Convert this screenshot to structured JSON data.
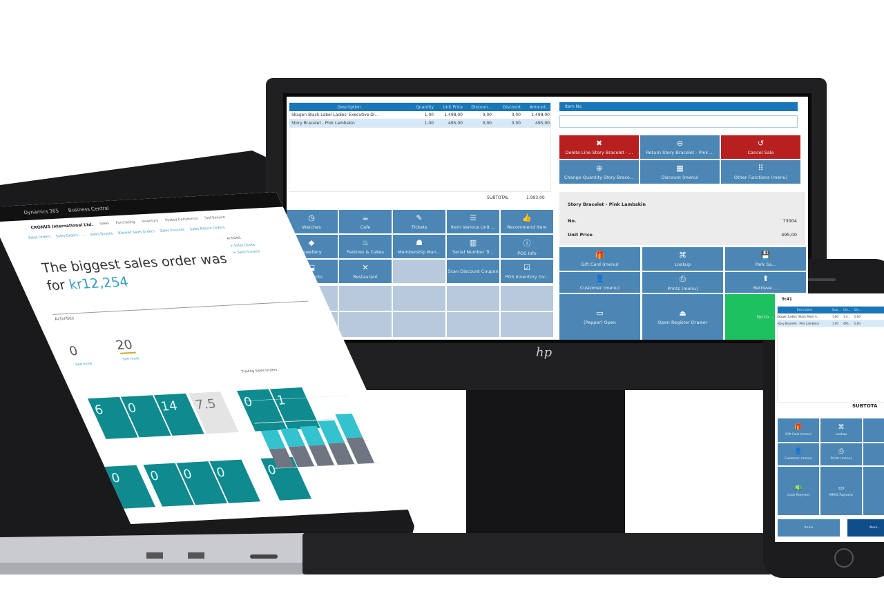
{
  "colors": {
    "accent": "#1976b8",
    "tile": "#4b86b4",
    "danger": "#b8201f",
    "success": "#1ec160",
    "dashboard_tile": "#0f8a8f"
  },
  "monitor": {
    "brand": "hp",
    "table": {
      "headers": [
        "Description",
        "Quantity",
        "Unit Price",
        "Discoun...",
        "Discount",
        "Amount..."
      ],
      "rows": [
        [
          "Skagen Black Label Ladies' Executive Di...",
          "1,00",
          "1.498,00",
          "0,00",
          "0,00",
          "1.498,00"
        ],
        [
          "Story Bracelet - Pink Lambskin",
          "1,00",
          "495,00",
          "0,00",
          "0,00",
          "495,00"
        ]
      ]
    },
    "subtotal_label": "SUBTOTAL",
    "subtotal_value": "1.993,00",
    "item_no_label": "Item No.",
    "item_no_value": "",
    "tiles": [
      {
        "label": "Watches",
        "icon": "watch-icon",
        "glyph": "◷"
      },
      {
        "label": "Cafe",
        "icon": "coffee-icon",
        "glyph": "☕"
      },
      {
        "label": "Tickets",
        "icon": "ticket-icon",
        "glyph": "✎"
      },
      {
        "label": "Item Various Unit ...",
        "icon": "stack-icon",
        "glyph": "☰"
      },
      {
        "label": "Recommend Item",
        "icon": "thumbs-up-icon",
        "glyph": "👍"
      },
      {
        "label": "Jewellery",
        "icon": "diamond-icon",
        "glyph": "◆"
      },
      {
        "label": "Pastries & Cakes",
        "icon": "cake-icon",
        "glyph": "♨"
      },
      {
        "label": "Membership Man...",
        "icon": "member-icon",
        "glyph": "☗"
      },
      {
        "label": "Serial Number Tr...",
        "icon": "barcode-icon",
        "glyph": "▥"
      },
      {
        "label": "POS Info",
        "icon": "info-icon",
        "glyph": "ⓘ"
      },
      {
        "label": "Garments",
        "icon": "garment-icon",
        "glyph": "⬓"
      },
      {
        "label": "Restaurant",
        "icon": "cutlery-icon",
        "glyph": "✕"
      },
      {
        "label": "",
        "icon": "",
        "glyph": ""
      },
      {
        "label": "Scan Discount Coupon",
        "icon": "",
        "glyph": ""
      },
      {
        "label": "POS Inventory Ov...",
        "icon": "checkbox-icon",
        "glyph": "☑"
      }
    ],
    "actions": [
      {
        "label": "Delete Line Story Bracelet - ...",
        "icon": "close-icon",
        "glyph": "✖",
        "style": "red"
      },
      {
        "label": "Return Story Bracelet - Pink ...",
        "icon": "minus-circle-icon",
        "glyph": "⊖",
        "style": ""
      },
      {
        "label": "Cancel Sale",
        "icon": "undo-icon",
        "glyph": "↺",
        "style": "red"
      },
      {
        "label": "Change Quantity Story Brace...",
        "icon": "plus-circle-icon",
        "glyph": "⊕",
        "style": ""
      },
      {
        "label": "Discount (menu)",
        "icon": "calculator-icon",
        "glyph": "▦",
        "style": ""
      },
      {
        "label": "Other Functions (menu)",
        "icon": "grid-icon",
        "glyph": "⠿",
        "style": ""
      }
    ],
    "info": {
      "title": "Story Bracelet - Pink Lambskin",
      "no_label": "No.",
      "no_value": "73004",
      "price_label": "Unit Price",
      "price_value": "495,00"
    },
    "functions": [
      {
        "label": "Gift Card (menu)",
        "icon": "gift-icon",
        "glyph": "🎁"
      },
      {
        "label": "Lookup",
        "icon": "binoculars-icon",
        "glyph": "⌘"
      },
      {
        "label": "Park Sa...",
        "icon": "park-icon",
        "glyph": "💾"
      },
      {
        "label": "Customer (menu)",
        "icon": "user-icon",
        "glyph": "👤"
      },
      {
        "label": "Prints (menu)",
        "icon": "printer-icon",
        "glyph": "⎙"
      },
      {
        "label": "Retrieve ...",
        "icon": "retrieve-icon",
        "glyph": "⬆"
      },
      {
        "label": "(Pepper) Open",
        "icon": "card-icon",
        "glyph": "▭"
      },
      {
        "label": "Open Register Drawer",
        "icon": "drawer-icon",
        "glyph": "⏏"
      },
      {
        "label": "Go to ...",
        "icon": "",
        "glyph": ""
      }
    ]
  },
  "laptop": {
    "brand": "Dynamics 365",
    "app": "Business Central",
    "company": "CRONUS International Ltd.",
    "menus": [
      "Sales",
      "Purchasing",
      "Inventory",
      "Posted Documents",
      "Self-Service"
    ],
    "links": [
      "Sales Orders",
      "Sales Orders - ...",
      "Sales Quotes",
      "Blanket Sales Orders",
      "Sales Invoices",
      "Sales Return Orders"
    ],
    "actions_label": "ACTIONS",
    "actions": [
      "+ Sales Quote",
      "+ Sales Invoice"
    ],
    "headline": "The biggest sales order was",
    "headline_for": "for",
    "headline_value": "kr12,254",
    "activities": "Activities",
    "kpis": [
      {
        "value": "0",
        "link": "See more"
      },
      {
        "value": "20",
        "link": "See more"
      }
    ],
    "tiles": [
      {
        "value": "6"
      },
      {
        "value": "0"
      },
      {
        "value": "14"
      },
      {
        "value": "7.5",
        "style": "gray"
      },
      {
        "value": "0"
      },
      {
        "value": "1"
      }
    ],
    "tiles2": [
      {
        "value": "0"
      },
      {
        "value": "0"
      },
      {
        "value": "0"
      },
      {
        "value": "0"
      },
      {
        "value": "0"
      }
    ],
    "chart_title": "Trailing Sales Orders"
  },
  "chart_data": {
    "type": "bar",
    "stacked": true,
    "categories": [
      "",
      "",
      "",
      "",
      ""
    ],
    "series": [
      {
        "values": [
          17,
          18,
          18,
          19,
          23
        ],
        "color": "#6f7681"
      },
      {
        "values": [
          16,
          16,
          17,
          20,
          21
        ],
        "color": "#34c2cf"
      }
    ],
    "ylim": [
      0,
      60
    ],
    "grid": true
  },
  "phone": {
    "time": "9:41",
    "headers": [
      "Description",
      "Qua...",
      "Uni...",
      "Dis..."
    ],
    "rows": [
      [
        "Skagen Ladies' Black Mesh S...",
        "1,00",
        "1.4...",
        "0,00"
      ],
      [
        "Story Bracelet - Pink Lambskin",
        "1,00",
        "495...",
        "0,00"
      ]
    ],
    "subtotal": "SUBTOTA",
    "tiles": [
      {
        "label": "Gift Card (menu)",
        "icon": "gift-icon",
        "glyph": "🎁"
      },
      {
        "label": "Lookup",
        "icon": "binoculars-icon",
        "glyph": "⌘"
      },
      {
        "label": "Customer (menu)",
        "icon": "user-icon",
        "glyph": "👤"
      },
      {
        "label": "Prints (menu)",
        "icon": "printer-icon",
        "glyph": "⎙"
      },
      {
        "label": "Cash Payment",
        "icon": "cash-icon",
        "glyph": "💵"
      },
      {
        "label": "MPOS Payment",
        "icon": "card-icon",
        "glyph": "▭"
      }
    ],
    "items_button": "Items",
    "more_button": "More..."
  }
}
